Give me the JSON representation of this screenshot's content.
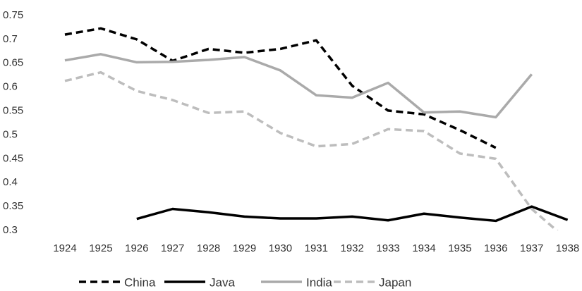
{
  "chart_data": {
    "type": "line",
    "categories": [
      "1924",
      "1925",
      "1926",
      "1927",
      "1928",
      "1929",
      "1930",
      "1931",
      "1932",
      "1933",
      "1934",
      "1935",
      "1936",
      "1937",
      "1938"
    ],
    "series": [
      {
        "name": "China",
        "color": "#000000",
        "line_style": "dashed",
        "values": [
          0.71,
          0.723,
          0.7,
          0.655,
          0.68,
          0.672,
          0.68,
          0.698,
          0.603,
          0.551,
          0.543,
          0.51,
          0.473,
          null,
          null
        ]
      },
      {
        "name": "Java",
        "color": "#000000",
        "line_style": "solid",
        "values": [
          null,
          null,
          0.324,
          0.345,
          0.338,
          0.329,
          0.325,
          0.325,
          0.329,
          0.321,
          0.335,
          0.327,
          0.32,
          0.35,
          0.322
        ]
      },
      {
        "name": "India",
        "color": "#aaaaaa",
        "line_style": "solid",
        "values": [
          0.656,
          0.669,
          0.652,
          0.653,
          0.657,
          0.663,
          0.635,
          0.583,
          0.578,
          0.609,
          0.547,
          0.549,
          0.537,
          0.627,
          null
        ]
      },
      {
        "name": "Japan",
        "color": "#bdbdbd",
        "line_style": "dashed",
        "values": [
          0.613,
          0.631,
          0.592,
          0.573,
          0.546,
          0.549,
          0.504,
          0.476,
          0.481,
          0.512,
          0.508,
          0.461,
          0.45,
          0.345,
          0.28
        ]
      }
    ],
    "ylim": [
      0.3,
      0.75
    ],
    "yticks": [
      0.3,
      0.35,
      0.4,
      0.45,
      0.5,
      0.55,
      0.6,
      0.65,
      0.7,
      0.75
    ],
    "grid": false,
    "legend": "bottom"
  }
}
